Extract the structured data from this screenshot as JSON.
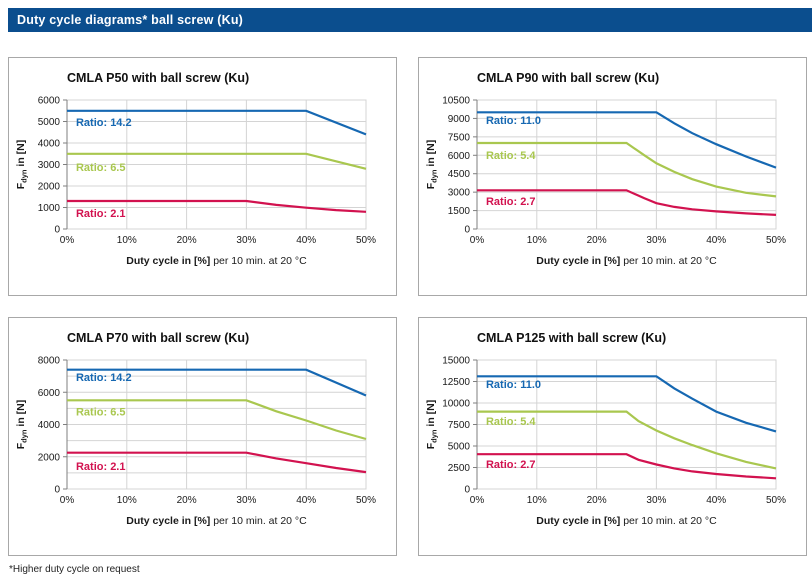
{
  "page": {
    "header_title": "Duty cycle diagrams* ball screw (Ku)",
    "footnote": "*Higher duty cycle on request",
    "colors": {
      "header_bg": "#0b4e8e",
      "series_blue": "#1668b2",
      "series_green": "#a9c74f",
      "series_red": "#d2124f",
      "gridline": "#d4d4d4",
      "axis": "#7f7f7f",
      "text": "#1a1a1a"
    }
  },
  "chart_data": [
    {
      "type": "line",
      "title": "CMLA P50 with ball screw (Ku)",
      "xlabel_bold": "Duty cycle in [%]",
      "xlabel_regular": " per 10 min. at 20 °C",
      "ylabel": {
        "base": "F",
        "sub": "dyn",
        "rest": " in [N]"
      },
      "xlim": [
        0,
        50
      ],
      "xticks": [
        0,
        10,
        20,
        30,
        40,
        50
      ],
      "xtick_suffix": "%",
      "ylim": [
        0,
        6000
      ],
      "ytick_labels": [
        0,
        1000,
        2000,
        3000,
        4000,
        5000,
        6000
      ],
      "ygrid_step": 1000,
      "grid": true,
      "legend_position": "inline-annotations",
      "series": [
        {
          "name": "Ratio: 14.2",
          "ratio": "14.2",
          "color": "#1668b2",
          "points": [
            [
              0,
              5500
            ],
            [
              40,
              5500
            ],
            [
              50,
              4400
            ]
          ],
          "label_anchor": [
            1.5,
            4950
          ]
        },
        {
          "name": "Ratio: 6.5",
          "ratio": "6.5",
          "color": "#a9c74f",
          "points": [
            [
              0,
              3500
            ],
            [
              40,
              3500
            ],
            [
              50,
              2800
            ]
          ],
          "label_anchor": [
            1.5,
            2870
          ]
        },
        {
          "name": "Ratio: 2.1",
          "ratio": "2.1",
          "color": "#d2124f",
          "points": [
            [
              0,
              1300
            ],
            [
              30,
              1300
            ],
            [
              35,
              1120
            ],
            [
              40,
              990
            ],
            [
              45,
              880
            ],
            [
              50,
              800
            ]
          ],
          "label_anchor": [
            1.5,
            730
          ]
        }
      ]
    },
    {
      "type": "line",
      "title": "CMLA P90 with ball screw (Ku)",
      "xlabel_bold": "Duty cycle in [%]",
      "xlabel_regular": " per 10 min. at 20 °C",
      "ylabel": {
        "base": "F",
        "sub": "dyn",
        "rest": " in [N]"
      },
      "xlim": [
        0,
        50
      ],
      "xticks": [
        0,
        10,
        20,
        30,
        40,
        50
      ],
      "xtick_suffix": "%",
      "ylim": [
        0,
        10500
      ],
      "ytick_labels": [
        0,
        1500,
        3000,
        4500,
        6000,
        7500,
        9000,
        10500
      ],
      "ygrid_step": 1500,
      "grid": true,
      "legend_position": "inline-annotations",
      "series": [
        {
          "name": "Ratio: 11.0",
          "ratio": "11.0",
          "color": "#1668b2",
          "points": [
            [
              0,
              9500
            ],
            [
              30,
              9500
            ],
            [
              33,
              8600
            ],
            [
              36,
              7800
            ],
            [
              40,
              6900
            ],
            [
              45,
              5900
            ],
            [
              50,
              5000
            ]
          ],
          "label_anchor": [
            1.5,
            8850
          ]
        },
        {
          "name": "Ratio: 5.4",
          "ratio": "5.4",
          "color": "#a9c74f",
          "points": [
            [
              0,
              7000
            ],
            [
              25,
              7000
            ],
            [
              28,
              6000
            ],
            [
              30,
              5350
            ],
            [
              33,
              4650
            ],
            [
              36,
              4050
            ],
            [
              40,
              3450
            ],
            [
              45,
              2950
            ],
            [
              50,
              2650
            ]
          ],
          "label_anchor": [
            1.5,
            6000
          ]
        },
        {
          "name": "Ratio: 2.7",
          "ratio": "2.7",
          "color": "#d2124f",
          "points": [
            [
              0,
              3150
            ],
            [
              25,
              3150
            ],
            [
              28,
              2500
            ],
            [
              30,
              2100
            ],
            [
              33,
              1800
            ],
            [
              36,
              1600
            ],
            [
              40,
              1430
            ],
            [
              45,
              1270
            ],
            [
              50,
              1150
            ]
          ],
          "label_anchor": [
            1.5,
            2250
          ]
        }
      ]
    },
    {
      "type": "line",
      "title": "CMLA P70 with ball screw (Ku)",
      "xlabel_bold": "Duty cycle in [%]",
      "xlabel_regular": " per 10 min. at 20 °C",
      "ylabel": {
        "base": "F",
        "sub": "dyn",
        "rest": " in [N]"
      },
      "xlim": [
        0,
        50
      ],
      "xticks": [
        0,
        10,
        20,
        30,
        40,
        50
      ],
      "xtick_suffix": "%",
      "ylim": [
        0,
        8000
      ],
      "ytick_labels": [
        0,
        2000,
        4000,
        6000,
        8000
      ],
      "ygrid_step": 1000,
      "grid": true,
      "legend_position": "inline-annotations",
      "series": [
        {
          "name": "Ratio: 14.2",
          "ratio": "14.2",
          "color": "#1668b2",
          "points": [
            [
              0,
              7400
            ],
            [
              40,
              7400
            ],
            [
              50,
              5800
            ]
          ],
          "label_anchor": [
            1.5,
            6900
          ]
        },
        {
          "name": "Ratio: 6.5",
          "ratio": "6.5",
          "color": "#a9c74f",
          "points": [
            [
              0,
              5500
            ],
            [
              30,
              5500
            ],
            [
              35,
              4820
            ],
            [
              40,
              4250
            ],
            [
              45,
              3630
            ],
            [
              50,
              3100
            ]
          ],
          "label_anchor": [
            1.5,
            4780
          ]
        },
        {
          "name": "Ratio: 2.1",
          "ratio": "2.1",
          "color": "#d2124f",
          "points": [
            [
              0,
              2250
            ],
            [
              30,
              2250
            ],
            [
              35,
              1900
            ],
            [
              40,
              1600
            ],
            [
              45,
              1300
            ],
            [
              50,
              1050
            ]
          ],
          "label_anchor": [
            1.5,
            1380
          ]
        }
      ]
    },
    {
      "type": "line",
      "title": "CMLA P125 with ball screw (Ku)",
      "xlabel_bold": "Duty cycle in [%]",
      "xlabel_regular": " per 10 min. at 20 °C",
      "ylabel": {
        "base": "F",
        "sub": "dyn",
        "rest": " in [N]"
      },
      "xlim": [
        0,
        50
      ],
      "xticks": [
        0,
        10,
        20,
        30,
        40,
        50
      ],
      "xtick_suffix": "%",
      "ylim": [
        0,
        15000
      ],
      "ytick_labels": [
        0,
        2500,
        5000,
        7500,
        10000,
        12500,
        15000
      ],
      "ygrid_step": 2500,
      "grid": true,
      "legend_position": "inline-annotations",
      "series": [
        {
          "name": "Ratio: 11.0",
          "ratio": "11.0",
          "color": "#1668b2",
          "points": [
            [
              0,
              13100
            ],
            [
              30,
              13100
            ],
            [
              33,
              11700
            ],
            [
              36,
              10500
            ],
            [
              40,
              9000
            ],
            [
              45,
              7700
            ],
            [
              50,
              6700
            ]
          ],
          "label_anchor": [
            1.5,
            12150
          ]
        },
        {
          "name": "Ratio: 5.4",
          "ratio": "5.4",
          "color": "#a9c74f",
          "points": [
            [
              0,
              9000
            ],
            [
              25,
              9000
            ],
            [
              27,
              7900
            ],
            [
              30,
              6800
            ],
            [
              33,
              5900
            ],
            [
              36,
              5100
            ],
            [
              40,
              4150
            ],
            [
              45,
              3150
            ],
            [
              50,
              2400
            ]
          ],
          "label_anchor": [
            1.5,
            7850
          ]
        },
        {
          "name": "Ratio: 2.7",
          "ratio": "2.7",
          "color": "#d2124f",
          "points": [
            [
              0,
              4050
            ],
            [
              25,
              4050
            ],
            [
              27,
              3400
            ],
            [
              30,
              2850
            ],
            [
              33,
              2400
            ],
            [
              36,
              2050
            ],
            [
              40,
              1750
            ],
            [
              45,
              1450
            ],
            [
              50,
              1250
            ]
          ],
          "label_anchor": [
            1.5,
            2850
          ]
        }
      ]
    }
  ]
}
